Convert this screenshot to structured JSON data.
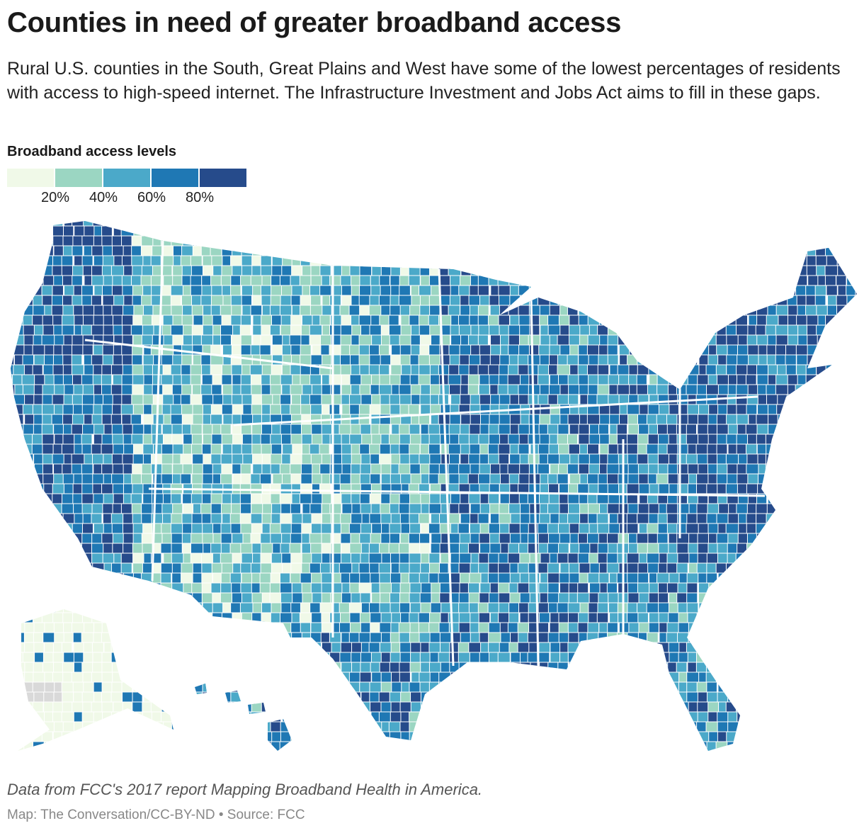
{
  "title": "Counties in need of greater broadband access",
  "subtitle": "Rural U.S. counties in the South, Great Plains and West have some of the lowest percentages of residents with access to high-speed internet. The Infrastructure Investment and Jobs Act aims to fill in these gaps.",
  "legend": {
    "title": "Broadband access levels",
    "colors": [
      "#f0f9e8",
      "#9bd6c2",
      "#4ba9c9",
      "#1f78b4",
      "#264b8b"
    ],
    "ticks": [
      "20%",
      "40%",
      "60%",
      "80%"
    ],
    "no_data_color": "#d9d9d9"
  },
  "map": {
    "type": "choropleth",
    "region": "U.S. counties",
    "border_color": "#ffffff"
  },
  "footer": {
    "note": "Data from FCC's 2017 report Mapping Broadband Health in America.",
    "credit": "Map: The Conversation/CC-BY-ND • Source: FCC"
  }
}
